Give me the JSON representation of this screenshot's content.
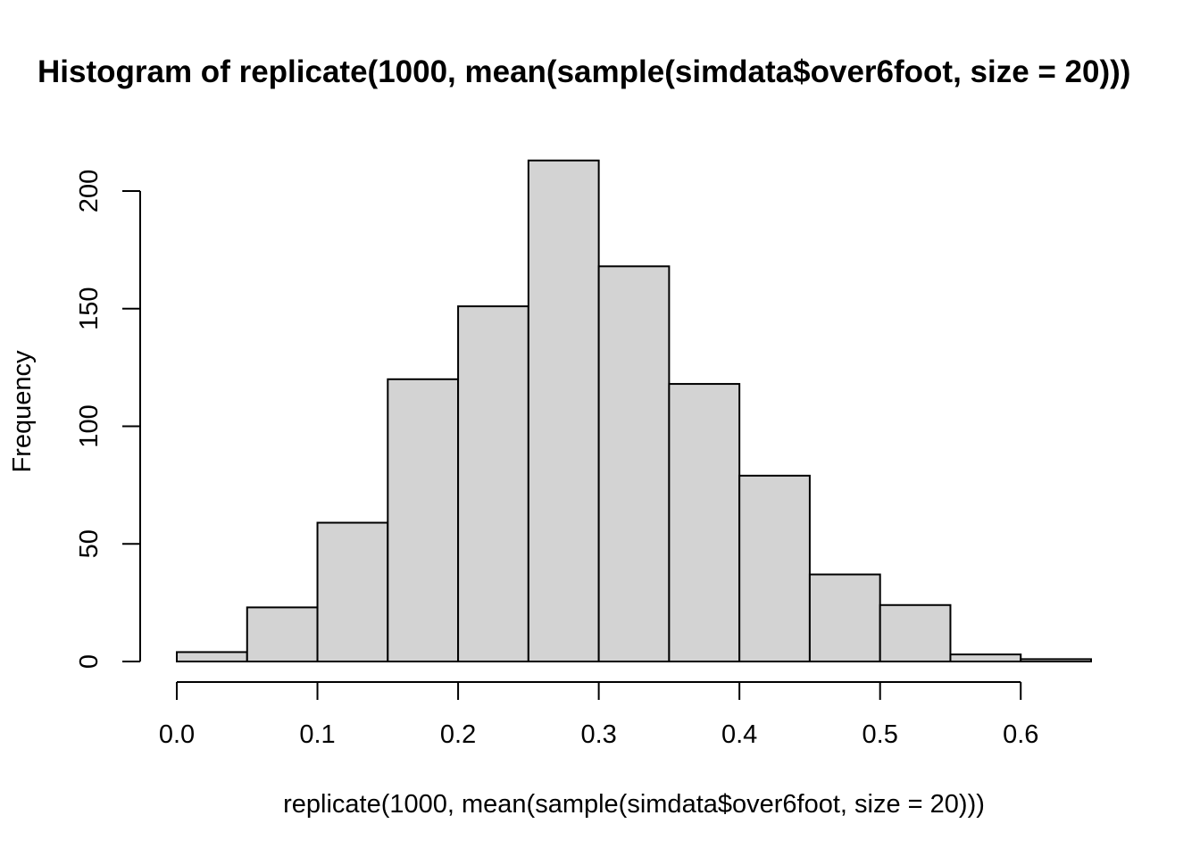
{
  "chart_data": {
    "type": "bar",
    "title": "Histogram of replicate(1000, mean(sample(simdata$over6foot, size = 20)))",
    "xlabel": "replicate(1000, mean(sample(simdata$over6foot, size = 20)))",
    "ylabel": "Frequency",
    "bin_edges": [
      0.0,
      0.05,
      0.1,
      0.15,
      0.2,
      0.25,
      0.3,
      0.35,
      0.4,
      0.45,
      0.5,
      0.55,
      0.6,
      0.65
    ],
    "values": [
      4,
      23,
      59,
      120,
      151,
      213,
      168,
      118,
      79,
      37,
      24,
      3,
      1
    ],
    "xlim": [
      0.0,
      0.65
    ],
    "ylim": [
      0,
      213
    ],
    "x_ticks": [
      0.0,
      0.1,
      0.2,
      0.3,
      0.4,
      0.5,
      0.6
    ],
    "x_tick_labels": [
      "0.0",
      "0.1",
      "0.2",
      "0.3",
      "0.4",
      "0.5",
      "0.6"
    ],
    "y_ticks": [
      0,
      50,
      100,
      150,
      200
    ],
    "y_tick_labels": [
      "0",
      "50",
      "100",
      "150",
      "200"
    ],
    "bar_color": "#d3d3d3",
    "border_color": "#000000",
    "grid": false
  }
}
